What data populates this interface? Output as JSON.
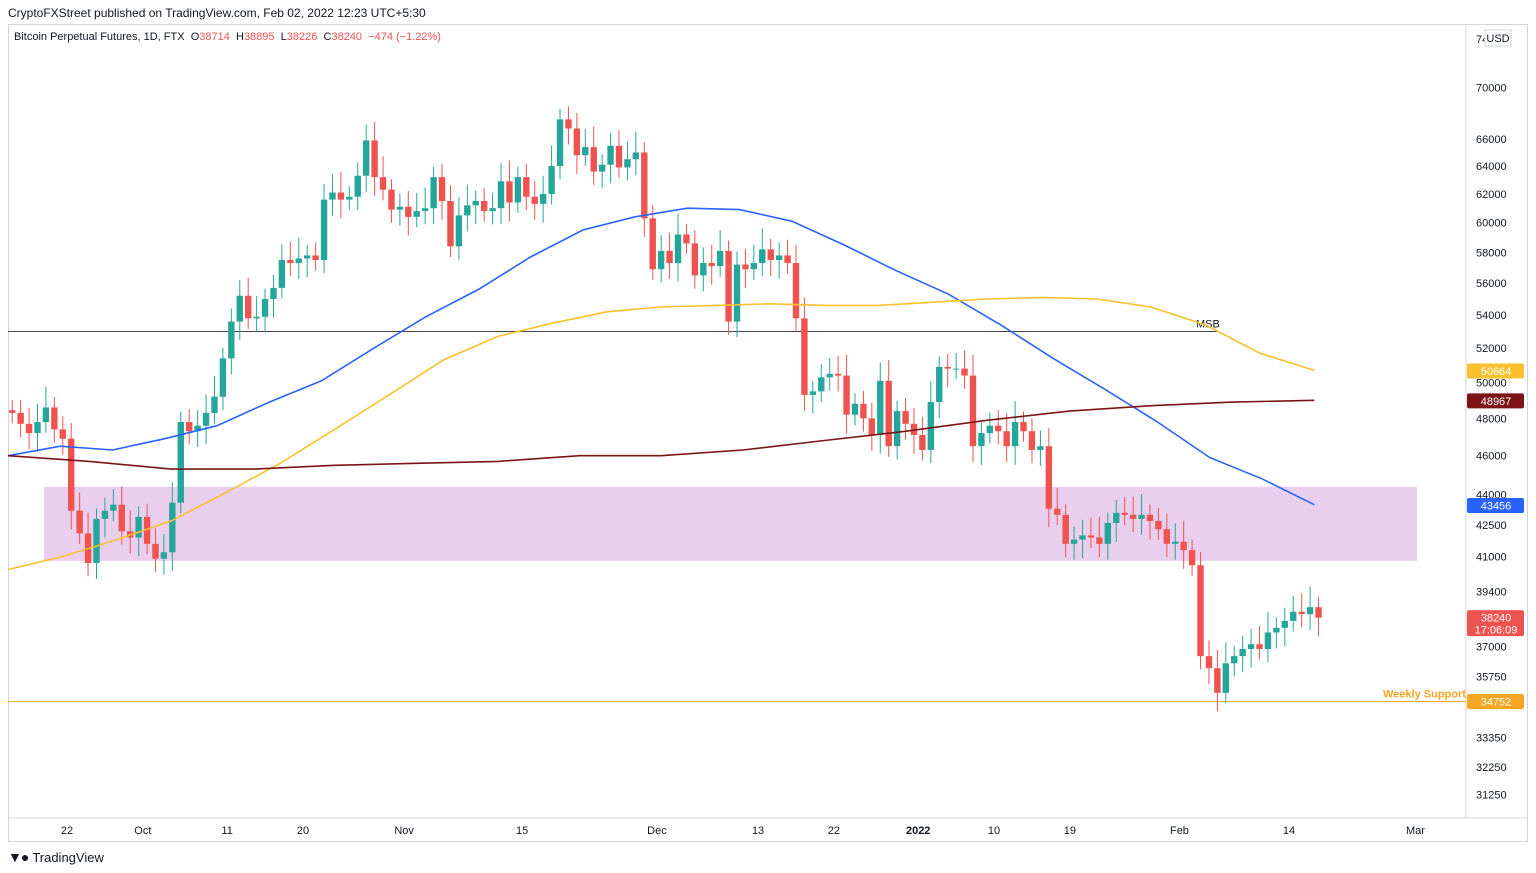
{
  "credit": "CryptoFXStreet published on TradingView.com, Feb 02, 2022 12:23 UTC+5:30",
  "header": {
    "symbol": "Bitcoin Perpetual Futures, 1D, FTX",
    "o_label": "O",
    "o_value": "38714",
    "h_label": "H",
    "h_value": "38895",
    "l_label": "L",
    "l_value": "38226",
    "c_label": "C",
    "c_value": "38240",
    "change": "−474 (−1.22%)"
  },
  "footer_brand": "TradingView",
  "currency": "USD",
  "colors": {
    "up": "#26a69a",
    "down": "#ef5350",
    "ma_blue": "#2962ff",
    "ma_yellow": "#fbc02d",
    "ma_darkred": "#7b1416",
    "zone": "#e1bee7",
    "support": "#f5a623",
    "msb_line": "#434651"
  },
  "chart_data": {
    "type": "candlestick",
    "title": "Bitcoin Perpetual Futures, 1D, FTX",
    "scale": "log",
    "ylim": [
      30500,
      75000
    ],
    "y_ticks": [
      31250,
      32250,
      33350,
      35750,
      37000,
      39400,
      41000,
      42500,
      44000,
      46000,
      48000,
      50000,
      52000,
      54000,
      56000,
      58000,
      60000,
      62000,
      64000,
      66000,
      70000,
      74000
    ],
    "x_range": [
      "2021-09-15",
      "2022-03-07"
    ],
    "x_ticks": [
      {
        "date": "2021-09-22",
        "label": "22"
      },
      {
        "date": "2021-10-01",
        "label": "Oct"
      },
      {
        "date": "2021-10-11",
        "label": "11"
      },
      {
        "date": "2021-10-20",
        "label": "20"
      },
      {
        "date": "2021-11-01",
        "label": "Nov"
      },
      {
        "date": "2021-11-15",
        "label": "15"
      },
      {
        "date": "2021-12-01",
        "label": "Dec"
      },
      {
        "date": "2021-12-13",
        "label": "13"
      },
      {
        "date": "2021-12-22",
        "label": "22"
      },
      {
        "date": "2022-01-01",
        "label": "2022"
      },
      {
        "date": "2022-01-10",
        "label": "10"
      },
      {
        "date": "2022-01-19",
        "label": "19"
      },
      {
        "date": "2022-02-01",
        "label": "Feb"
      },
      {
        "date": "2022-02-14",
        "label": "14"
      },
      {
        "date": "2022-03-01",
        "label": "Mar"
      }
    ],
    "closes": [
      48300,
      47700,
      47200,
      47800,
      48600,
      47400,
      46900,
      43200,
      42100,
      40700,
      42800,
      43200,
      43500,
      42200,
      41900,
      42900,
      41600,
      40900,
      41200,
      43600,
      47800,
      47300,
      47600,
      48300,
      49200,
      51400,
      53600,
      55200,
      53800,
      53900,
      55000,
      55700,
      57500,
      57300,
      57600,
      57800,
      57500,
      61600,
      62100,
      61600,
      61800,
      63300,
      65900,
      63200,
      62300,
      60900,
      61100,
      60400,
      60800,
      61000,
      63200,
      61500,
      58400,
      60500,
      61200,
      61500,
      60800,
      61000,
      62900,
      61400,
      63200,
      61800,
      61300,
      62000,
      64000,
      67500,
      66800,
      64800,
      65400,
      63600,
      64100,
      65500,
      63900,
      64500,
      65000,
      60300,
      56900,
      58100,
      57300,
      59200,
      58600,
      56500,
      57300,
      57100,
      58100,
      53600,
      57200,
      56900,
      57300,
      58200,
      57500,
      57800,
      57300,
      53800,
      49300,
      49500,
      50300,
      50500,
      50400,
      48200,
      48800,
      48000,
      47100,
      50100,
      46500,
      48400,
      47700,
      47100,
      46300,
      48900,
      50900,
      50800,
      50800,
      50400,
      46500,
      47200,
      47600,
      47300,
      46500,
      47800,
      47300,
      46300,
      46500,
      43300,
      43000,
      41600,
      41800,
      42000,
      41900,
      41600,
      42600,
      43100,
      43000,
      42800,
      43000,
      42700,
      42300,
      41600,
      41700,
      41300,
      40600,
      36600,
      36100,
      35100,
      36300,
      36600,
      36900,
      37100,
      36900,
      37600,
      37800,
      38100,
      38500,
      38400,
      38700,
      38240
    ],
    "moving_averages": [
      {
        "color": "#2962ff",
        "last_value": "43456",
        "start": 46000,
        "points": [
          46500,
          46300,
          46900,
          47600,
          48900,
          50100,
          52000,
          53900,
          55600,
          57700,
          59500,
          60400,
          61000,
          60900,
          60100,
          58500,
          56800,
          55300,
          53400,
          51400,
          49600,
          47800,
          45900,
          44800,
          43500
        ]
      },
      {
        "color": "#fbc02d",
        "last_value": "50664",
        "start": 40400,
        "points": [
          41000,
          41800,
          42700,
          44100,
          45600,
          47400,
          49300,
          51300,
          52700,
          53500,
          54200,
          54500,
          54600,
          54700,
          54600,
          54600,
          54800,
          55000,
          55100,
          55000,
          54500,
          53400,
          51700,
          50700
        ]
      },
      {
        "color": "#7b1416",
        "last_value": "48967",
        "start": 46000,
        "points": [
          45700,
          45300,
          45300,
          45500,
          45600,
          45700,
          46000,
          46000,
          46300,
          46800,
          47300,
          47900,
          48400,
          48700,
          48900,
          49000
        ]
      }
    ],
    "horizontal_levels": [
      {
        "name": "MSB",
        "value": 53000,
        "color": "#434651"
      },
      {
        "name": "Weekly Support",
        "value": 34752,
        "color": "#f5a623"
      }
    ],
    "zone": {
      "low": 40800,
      "high": 44400
    },
    "price_tags": [
      {
        "value": "50664",
        "price": 50664,
        "color": "#fbc02d"
      },
      {
        "value": "48967",
        "price": 48967,
        "color": "#7b1416"
      },
      {
        "value": "43456",
        "price": 43456,
        "color": "#2962ff"
      },
      {
        "value": "38240",
        "price": 38240,
        "color": "#ef5350",
        "sub": "17:06:09"
      },
      {
        "value": "34752",
        "price": 34752,
        "color": "#f5a623"
      }
    ]
  }
}
